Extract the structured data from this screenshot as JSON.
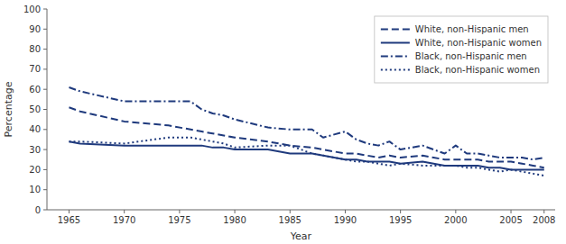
{
  "chart_data": {
    "type": "line",
    "xlabel": "Year",
    "ylabel": "Percentage",
    "x": [
      1965,
      1966,
      1970,
      1974,
      1976,
      1977,
      1978,
      1979,
      1980,
      1983,
      1985,
      1987,
      1988,
      1990,
      1991,
      1992,
      1993,
      1994,
      1995,
      1997,
      1998,
      1999,
      2000,
      2001,
      2002,
      2003,
      2004,
      2005,
      2006,
      2007,
      2008
    ],
    "series": [
      {
        "name": "White, non-Hispanic men",
        "color": "#1f3a7d",
        "line_style": "dashed",
        "values": [
          51,
          49,
          44,
          42,
          40,
          39,
          38,
          37,
          36,
          34,
          32,
          31,
          30,
          28,
          28,
          27,
          26,
          27,
          26,
          27,
          26,
          25,
          25,
          25,
          25,
          24,
          24,
          24,
          23,
          22,
          21
        ]
      },
      {
        "name": "White, non-Hispanic women",
        "color": "#1f3a7d",
        "line_style": "solid",
        "values": [
          34,
          33,
          32,
          32,
          32,
          32,
          31,
          31,
          30,
          30,
          28,
          28,
          27,
          25,
          25,
          24,
          24,
          24,
          23,
          24,
          23,
          22,
          22,
          22,
          22,
          21,
          21,
          20,
          20,
          20,
          20
        ]
      },
      {
        "name": "Black, non-Hispanic men",
        "color": "#1f3a7d",
        "line_style": "dashdot",
        "values": [
          61,
          59,
          54,
          54,
          54,
          50,
          48,
          47,
          45,
          41,
          40,
          40,
          36,
          39,
          35,
          33,
          32,
          34,
          30,
          32,
          30,
          28,
          32,
          28,
          28,
          27,
          26,
          26,
          26,
          25,
          26
        ]
      },
      {
        "name": "Black, non-Hispanic women",
        "color": "#1f3a7d",
        "line_style": "dotted",
        "values": [
          34,
          34,
          33,
          36,
          36,
          35,
          34,
          33,
          31,
          32,
          32,
          28,
          27,
          25,
          24,
          24,
          23,
          22,
          23,
          22,
          22,
          22,
          22,
          21,
          21,
          20,
          19,
          20,
          19,
          18,
          17
        ]
      }
    ],
    "xlim": [
      1963,
      2009
    ],
    "ylim": [
      0,
      100
    ],
    "xticks": [
      1965,
      1970,
      1975,
      1980,
      1985,
      1990,
      1995,
      2000,
      2005,
      2008
    ],
    "yticks": [
      0,
      10,
      20,
      30,
      40,
      50,
      60,
      70,
      80,
      90,
      100
    ],
    "grid": false,
    "legend": "upper right"
  }
}
